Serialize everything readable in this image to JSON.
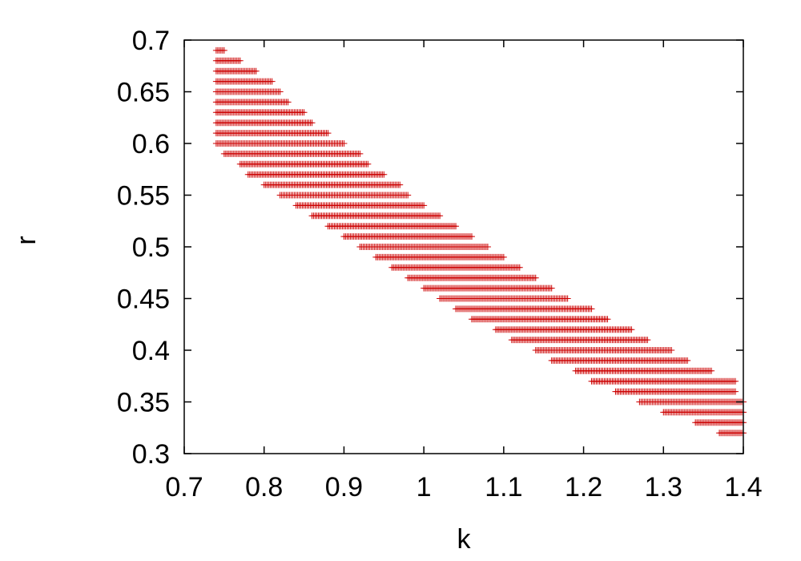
{
  "chart_data": {
    "type": "scatter",
    "marker": "+",
    "color": "#cc0000",
    "xlabel": "k",
    "ylabel": "r",
    "xlim": [
      0.7,
      1.4
    ],
    "ylim": [
      0.3,
      0.7
    ],
    "xticks": [
      "0.7",
      "0.8",
      "0.9",
      "1",
      "1.1",
      "1.2",
      "1.3",
      "1.4"
    ],
    "yticks": [
      "0.3",
      "0.35",
      "0.4",
      "0.45",
      "0.5",
      "0.55",
      "0.6",
      "0.65",
      "0.7"
    ],
    "grid": false,
    "point_rows": [
      {
        "r": 0.69,
        "k_min": 0.74,
        "k_max": 0.75
      },
      {
        "r": 0.68,
        "k_min": 0.74,
        "k_max": 0.77
      },
      {
        "r": 0.67,
        "k_min": 0.74,
        "k_max": 0.79
      },
      {
        "r": 0.66,
        "k_min": 0.74,
        "k_max": 0.81
      },
      {
        "r": 0.65,
        "k_min": 0.74,
        "k_max": 0.82
      },
      {
        "r": 0.64,
        "k_min": 0.74,
        "k_max": 0.83
      },
      {
        "r": 0.63,
        "k_min": 0.74,
        "k_max": 0.85
      },
      {
        "r": 0.62,
        "k_min": 0.74,
        "k_max": 0.86
      },
      {
        "r": 0.61,
        "k_min": 0.74,
        "k_max": 0.88
      },
      {
        "r": 0.6,
        "k_min": 0.74,
        "k_max": 0.9
      },
      {
        "r": 0.59,
        "k_min": 0.75,
        "k_max": 0.92
      },
      {
        "r": 0.58,
        "k_min": 0.77,
        "k_max": 0.93
      },
      {
        "r": 0.57,
        "k_min": 0.78,
        "k_max": 0.95
      },
      {
        "r": 0.56,
        "k_min": 0.8,
        "k_max": 0.97
      },
      {
        "r": 0.55,
        "k_min": 0.82,
        "k_max": 0.98
      },
      {
        "r": 0.54,
        "k_min": 0.84,
        "k_max": 1.0
      },
      {
        "r": 0.53,
        "k_min": 0.86,
        "k_max": 1.02
      },
      {
        "r": 0.52,
        "k_min": 0.88,
        "k_max": 1.04
      },
      {
        "r": 0.51,
        "k_min": 0.9,
        "k_max": 1.06
      },
      {
        "r": 0.5,
        "k_min": 0.92,
        "k_max": 1.08
      },
      {
        "r": 0.49,
        "k_min": 0.94,
        "k_max": 1.1
      },
      {
        "r": 0.48,
        "k_min": 0.96,
        "k_max": 1.12
      },
      {
        "r": 0.47,
        "k_min": 0.98,
        "k_max": 1.14
      },
      {
        "r": 0.46,
        "k_min": 1.0,
        "k_max": 1.16
      },
      {
        "r": 0.45,
        "k_min": 1.02,
        "k_max": 1.18
      },
      {
        "r": 0.44,
        "k_min": 1.04,
        "k_max": 1.21
      },
      {
        "r": 0.43,
        "k_min": 1.06,
        "k_max": 1.23
      },
      {
        "r": 0.42,
        "k_min": 1.09,
        "k_max": 1.26
      },
      {
        "r": 0.41,
        "k_min": 1.11,
        "k_max": 1.28
      },
      {
        "r": 0.4,
        "k_min": 1.14,
        "k_max": 1.31
      },
      {
        "r": 0.39,
        "k_min": 1.16,
        "k_max": 1.33
      },
      {
        "r": 0.38,
        "k_min": 1.19,
        "k_max": 1.36
      },
      {
        "r": 0.37,
        "k_min": 1.21,
        "k_max": 1.39
      },
      {
        "r": 0.36,
        "k_min": 1.24,
        "k_max": 1.39
      },
      {
        "r": 0.35,
        "k_min": 1.27,
        "k_max": 1.4
      },
      {
        "r": 0.34,
        "k_min": 1.3,
        "k_max": 1.4
      },
      {
        "r": 0.33,
        "k_min": 1.34,
        "k_max": 1.4
      },
      {
        "r": 0.32,
        "k_min": 1.37,
        "k_max": 1.4
      }
    ]
  }
}
